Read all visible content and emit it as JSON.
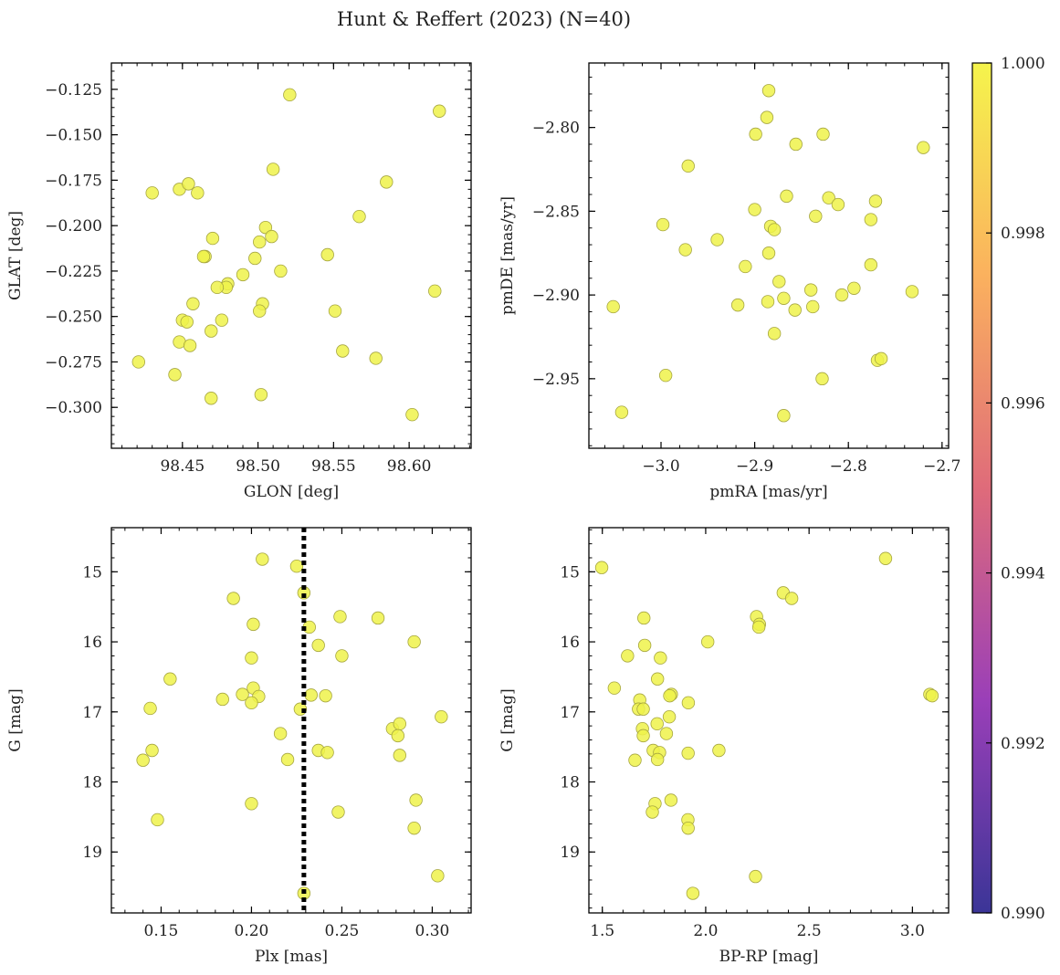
{
  "figure": {
    "title": "Hunt & Reffert (2023) (N=40)",
    "marker_color": "#eef24a",
    "marker_edge": "#a6a640"
  },
  "colorbar": {
    "min": 0.99,
    "max": 1.0,
    "ticks": [
      "0.990",
      "0.992",
      "0.994",
      "0.996",
      "0.998",
      "1.000"
    ],
    "cmap": "plasma",
    "stops": [
      "#3b3597",
      "#9a3fb8",
      "#df6b7a",
      "#fbb15e",
      "#f5f44c"
    ]
  },
  "chart_data": [
    {
      "type": "scatter",
      "xlabel": "GLON [deg]",
      "ylabel": "GLAT [deg]",
      "xlim": [
        98.403,
        98.641
      ],
      "ylim": [
        -0.3225,
        -0.1105
      ],
      "y_inverted": false,
      "xticks": [
        98.45,
        98.5,
        98.55,
        98.6
      ],
      "xtick_labels": [
        "98.45",
        "98.50",
        "98.55",
        "98.60"
      ],
      "yticks": [
        -0.125,
        -0.15,
        -0.175,
        -0.2,
        -0.225,
        -0.25,
        -0.275,
        -0.3
      ],
      "ytick_labels": [
        "−0.125",
        "−0.150",
        "−0.175",
        "−0.200",
        "−0.225",
        "−0.250",
        "−0.275",
        "−0.300"
      ],
      "x": [
        98.521,
        98.62,
        98.51,
        98.585,
        98.43,
        98.448,
        98.454,
        98.46,
        98.567,
        98.505,
        98.509,
        98.501,
        98.47,
        98.465,
        98.546,
        98.498,
        98.515,
        98.49,
        98.48,
        98.479,
        98.473,
        98.617,
        98.457,
        98.503,
        98.501,
        98.551,
        98.45,
        98.453,
        98.476,
        98.469,
        98.448,
        98.455,
        98.556,
        98.421,
        98.578,
        98.445,
        98.602,
        98.469,
        98.502,
        98.464
      ],
      "y": [
        -0.128,
        -0.137,
        -0.169,
        -0.176,
        -0.182,
        -0.18,
        -0.177,
        -0.182,
        -0.195,
        -0.201,
        -0.206,
        -0.209,
        -0.207,
        -0.217,
        -0.216,
        -0.218,
        -0.225,
        -0.227,
        -0.232,
        -0.234,
        -0.234,
        -0.236,
        -0.243,
        -0.243,
        -0.247,
        -0.247,
        -0.252,
        -0.253,
        -0.252,
        -0.258,
        -0.264,
        -0.266,
        -0.269,
        -0.275,
        -0.273,
        -0.282,
        -0.304,
        -0.295,
        -0.293,
        -0.217
      ]
    },
    {
      "type": "scatter",
      "xlabel": "pmRA [mas/yr]",
      "ylabel": "pmDE [mas/yr]",
      "xlim": [
        -3.077,
        -2.693
      ],
      "ylim": [
        -2.9915,
        -2.7615
      ],
      "y_inverted": false,
      "xticks": [
        -3.0,
        -2.9,
        -2.8,
        -2.7
      ],
      "xtick_labels": [
        "−3.0",
        "−2.9",
        "−2.8",
        "−2.7"
      ],
      "yticks": [
        -2.8,
        -2.85,
        -2.9,
        -2.95
      ],
      "ytick_labels": [
        "−2.80",
        "−2.85",
        "−2.90",
        "−2.95"
      ],
      "x": [
        -2.885,
        -2.887,
        -2.899,
        -2.827,
        -2.856,
        -2.72,
        -2.971,
        -2.866,
        -2.821,
        -2.811,
        -2.771,
        -2.9,
        -2.998,
        -2.883,
        -2.835,
        -2.776,
        -2.879,
        -2.974,
        -2.94,
        -2.885,
        -2.776,
        -2.91,
        -2.874,
        -2.84,
        -2.794,
        -2.732,
        -2.869,
        -2.807,
        -2.918,
        -2.886,
        -2.857,
        -2.838,
        -3.051,
        -2.879,
        -2.828,
        -2.769,
        -2.765,
        -2.995,
        -3.042,
        -2.869
      ],
      "y": [
        -2.778,
        -2.794,
        -2.804,
        -2.804,
        -2.81,
        -2.812,
        -2.823,
        -2.841,
        -2.842,
        -2.846,
        -2.844,
        -2.849,
        -2.858,
        -2.859,
        -2.853,
        -2.855,
        -2.861,
        -2.873,
        -2.867,
        -2.875,
        -2.882,
        -2.883,
        -2.892,
        -2.897,
        -2.896,
        -2.898,
        -2.902,
        -2.9,
        -2.906,
        -2.904,
        -2.909,
        -2.907,
        -2.907,
        -2.923,
        -2.95,
        -2.939,
        -2.938,
        -2.948,
        -2.97,
        -2.972
      ]
    },
    {
      "type": "scatter",
      "xlabel": "Plx [mas]",
      "ylabel": "G [mag]",
      "xlim": [
        0.1225,
        0.3215
      ],
      "ylim": [
        14.37,
        19.87
      ],
      "y_inverted": true,
      "vline": 0.229,
      "xticks": [
        0.15,
        0.2,
        0.25,
        0.3
      ],
      "xtick_labels": [
        "0.15",
        "0.20",
        "0.25",
        "0.30"
      ],
      "yticks": [
        15,
        16,
        17,
        18,
        19
      ],
      "ytick_labels": [
        "15",
        "16",
        "17",
        "18",
        "19"
      ],
      "x": [
        0.206,
        0.225,
        0.229,
        0.19,
        0.201,
        0.232,
        0.249,
        0.27,
        0.29,
        0.237,
        0.25,
        0.2,
        0.155,
        0.144,
        0.201,
        0.195,
        0.204,
        0.2,
        0.184,
        0.227,
        0.233,
        0.241,
        0.305,
        0.278,
        0.282,
        0.281,
        0.216,
        0.145,
        0.14,
        0.22,
        0.237,
        0.242,
        0.282,
        0.291,
        0.2,
        0.248,
        0.148,
        0.29,
        0.303,
        0.229
      ],
      "y": [
        14.82,
        14.92,
        15.3,
        15.38,
        15.75,
        15.79,
        15.64,
        15.66,
        16.0,
        16.05,
        16.2,
        16.23,
        16.53,
        16.95,
        16.66,
        16.75,
        16.78,
        16.87,
        16.82,
        16.96,
        16.76,
        16.77,
        17.07,
        17.24,
        17.17,
        17.34,
        17.31,
        17.55,
        17.69,
        17.68,
        17.55,
        17.58,
        17.62,
        18.26,
        18.31,
        18.43,
        18.54,
        18.66,
        19.34,
        19.59
      ]
    },
    {
      "type": "scatter",
      "xlabel": "BP-RP [mag]",
      "ylabel": "G [mag]",
      "xlim": [
        1.435,
        3.175
      ],
      "ylim": [
        14.37,
        19.87
      ],
      "y_inverted": true,
      "xticks": [
        1.5,
        2.0,
        2.5,
        3.0
      ],
      "xtick_labels": [
        "1.5",
        "2.0",
        "2.5",
        "3.0"
      ],
      "yticks": [
        15,
        16,
        17,
        18,
        19
      ],
      "ytick_labels": [
        "15",
        "16",
        "17",
        "18",
        "19"
      ],
      "x": [
        1.497,
        2.87,
        2.375,
        2.416,
        1.701,
        2.246,
        2.26,
        2.257,
        2.01,
        1.705,
        1.781,
        1.622,
        1.558,
        1.767,
        1.834,
        1.826,
        1.681,
        1.916,
        1.675,
        1.698,
        3.084,
        3.095,
        1.824,
        1.765,
        1.694,
        1.81,
        1.698,
        1.746,
        1.777,
        1.658,
        1.767,
        1.915,
        2.064,
        1.832,
        1.755,
        1.742,
        1.914,
        1.915,
        2.241,
        1.938
      ],
      "y": [
        14.94,
        14.81,
        15.3,
        15.38,
        15.66,
        15.64,
        15.75,
        15.79,
        16.0,
        16.05,
        16.23,
        16.2,
        16.66,
        16.53,
        16.75,
        16.77,
        16.83,
        16.87,
        16.96,
        16.96,
        16.75,
        16.77,
        17.07,
        17.17,
        17.24,
        17.31,
        17.34,
        17.55,
        17.58,
        17.69,
        17.68,
        17.59,
        17.55,
        18.26,
        18.31,
        18.43,
        18.54,
        18.66,
        19.35,
        19.59
      ]
    }
  ]
}
